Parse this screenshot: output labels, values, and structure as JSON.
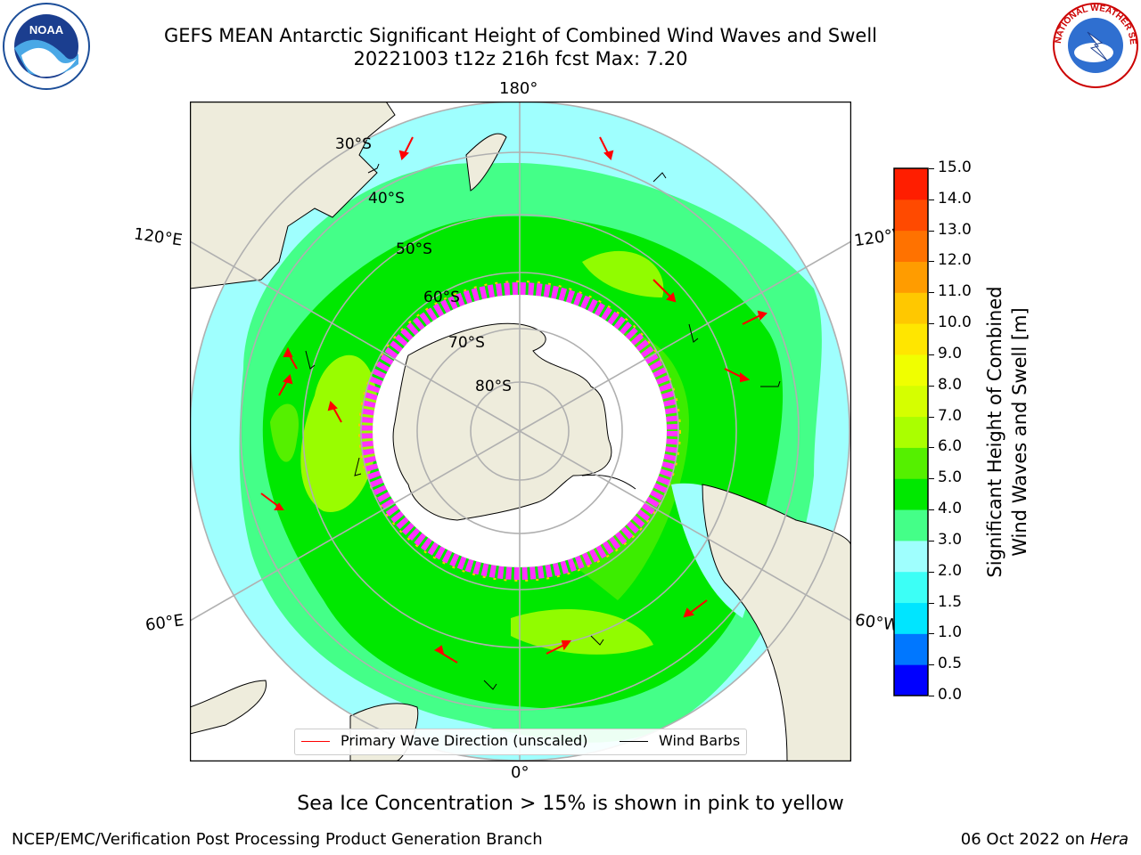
{
  "title": {
    "line1": "GEFS MEAN Antarctic Significant Height of Combined Wind Waves and Swell",
    "line2": "20221003 t12z 216h fcst   Max: 7.20"
  },
  "map": {
    "projection": "south-polar-stereographic",
    "longitude_labels": {
      "top": "180°",
      "bottom": "0°",
      "upper_left": "120°E",
      "upper_right": "120°W",
      "lower_left": "60°E",
      "lower_right": "60°W"
    },
    "latitude_labels": [
      "30°S",
      "40°S",
      "50°S",
      "60°S",
      "70°S",
      "80°S"
    ],
    "colors": {
      "land": "#eeecdc",
      "ice_free_ocean_low": "#9ffffe",
      "sea_ice": "#ff33ff",
      "coast": "#000000",
      "grid": "#b0b0b0"
    }
  },
  "legend": {
    "wave_label": "Primary Wave Direction (unscaled)",
    "wind_label": "Wind Barbs",
    "wave_color": "#ff0000",
    "wind_color": "#000000"
  },
  "colorbar": {
    "label_line1": "Significant Height of Combined",
    "label_line2": "Wind Waves and Swell [m]",
    "ticks": [
      "0.0",
      "0.5",
      "1.0",
      "1.5",
      "2.0",
      "3.0",
      "4.0",
      "5.0",
      "6.0",
      "7.0",
      "8.0",
      "9.0",
      "10.0",
      "11.0",
      "12.0",
      "13.0",
      "14.0",
      "15.0"
    ],
    "colors": [
      "#0000ff",
      "#0077ff",
      "#00e5ff",
      "#3cfff6",
      "#9ffffe",
      "#44ff88",
      "#00e800",
      "#55f000",
      "#aaff00",
      "#d5ff00",
      "#f0ff00",
      "#ffe600",
      "#ffc800",
      "#ff9c00",
      "#ff7200",
      "#ff4a00",
      "#ff1e00"
    ]
  },
  "caption": "Sea Ice Concentration > 15% is shown in pink to yellow",
  "footer": {
    "left": "NCEP/EMC/Verification Post Processing Product Generation Branch",
    "date": "06 Oct 2022 on ",
    "machine": "Hera"
  },
  "logos": {
    "noaa": "NOAA",
    "nws": "NATIONAL WEATHER SERVICE"
  }
}
